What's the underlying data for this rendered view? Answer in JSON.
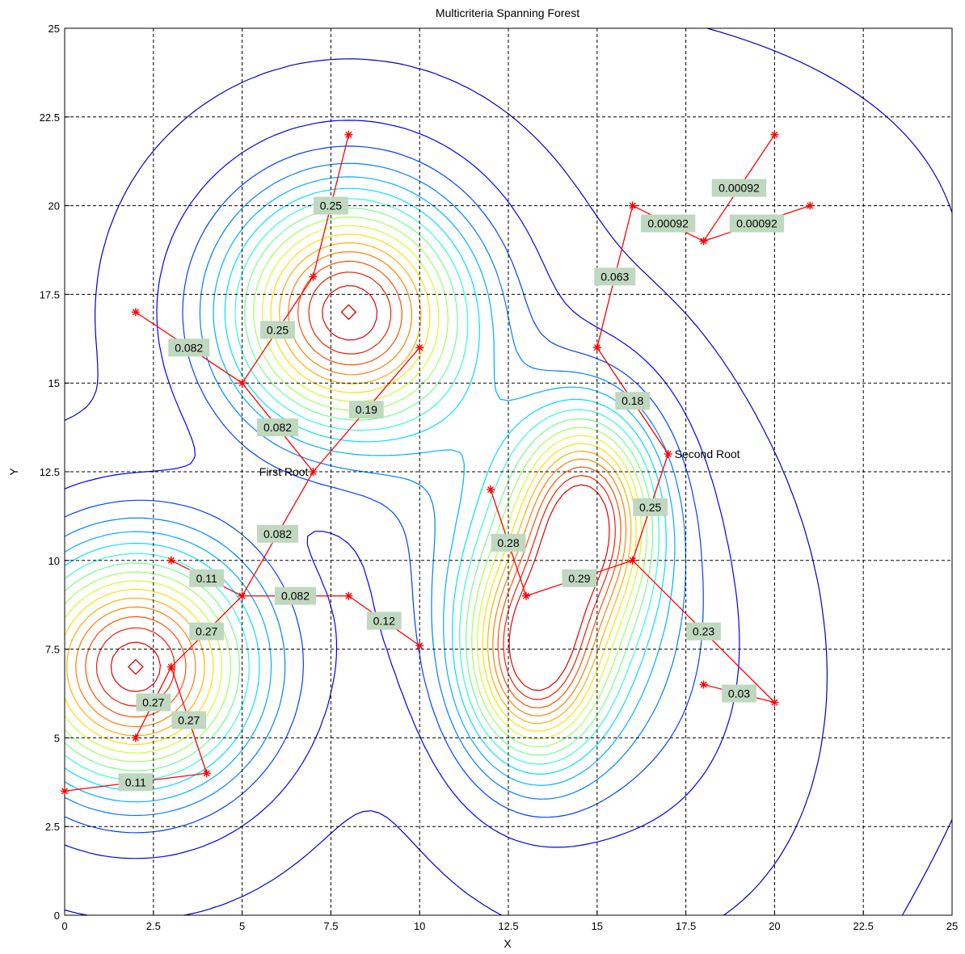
{
  "chart_data": {
    "type": "contour",
    "title": "Multicriteria Spanning Forest",
    "xlabel": "X",
    "ylabel": "Y",
    "xlim": [
      0,
      25
    ],
    "ylim": [
      0,
      25
    ],
    "xticks": [
      "0",
      "2.5",
      "5",
      "7.5",
      "10",
      "12.5",
      "15",
      "17.5",
      "20",
      "22.5",
      "25"
    ],
    "yticks": [
      "0",
      "2.5",
      "5",
      "7.5",
      "10",
      "12.5",
      "15",
      "17.5",
      "20",
      "22.5",
      "25"
    ],
    "grid": true,
    "peaks": [
      {
        "x": 2,
        "y": 7,
        "marker": "diamond"
      },
      {
        "x": 8,
        "y": 17,
        "marker": "diamond"
      }
    ],
    "nodes": [
      {
        "id": "n1",
        "x": 8,
        "y": 22
      },
      {
        "id": "n2",
        "x": 7,
        "y": 18
      },
      {
        "id": "n3",
        "x": 5,
        "y": 15
      },
      {
        "id": "n4",
        "x": 2,
        "y": 17
      },
      {
        "id": "n5",
        "x": 10,
        "y": 16
      },
      {
        "id": "n6",
        "x": 7,
        "y": 12.5
      },
      {
        "id": "n7",
        "x": 5,
        "y": 9
      },
      {
        "id": "n8",
        "x": 3,
        "y": 10
      },
      {
        "id": "n9",
        "x": 8,
        "y": 9
      },
      {
        "id": "n10",
        "x": 10,
        "y": 7.6
      },
      {
        "id": "n11",
        "x": 3,
        "y": 7
      },
      {
        "id": "n12",
        "x": 2,
        "y": 5
      },
      {
        "id": "n13",
        "x": 4,
        "y": 4
      },
      {
        "id": "n14",
        "x": 0,
        "y": 3.5
      },
      {
        "id": "n15",
        "x": 15,
        "y": 16
      },
      {
        "id": "n16",
        "x": 16,
        "y": 20
      },
      {
        "id": "n17",
        "x": 18,
        "y": 19
      },
      {
        "id": "n18",
        "x": 20,
        "y": 22
      },
      {
        "id": "n19",
        "x": 21,
        "y": 20
      },
      {
        "id": "n20",
        "x": 17,
        "y": 13
      },
      {
        "id": "n21",
        "x": 16,
        "y": 10
      },
      {
        "id": "n22",
        "x": 13,
        "y": 9
      },
      {
        "id": "n23",
        "x": 12,
        "y": 12
      },
      {
        "id": "n24",
        "x": 20,
        "y": 6
      },
      {
        "id": "n25",
        "x": 18,
        "y": 6.5
      }
    ],
    "edges": [
      {
        "from": "n1",
        "to": "n2",
        "label": "0.25"
      },
      {
        "from": "n2",
        "to": "n3",
        "label": "0.25"
      },
      {
        "from": "n4",
        "to": "n3",
        "label": "0.082"
      },
      {
        "from": "n3",
        "to": "n6",
        "label": "0.082"
      },
      {
        "from": "n5",
        "to": "n6",
        "label": "0.19"
      },
      {
        "from": "n6",
        "to": "n7",
        "label": "0.082"
      },
      {
        "from": "n8",
        "to": "n7",
        "label": "0.11"
      },
      {
        "from": "n7",
        "to": "n9",
        "label": "0.082"
      },
      {
        "from": "n9",
        "to": "n10",
        "label": "0.12"
      },
      {
        "from": "n7",
        "to": "n11",
        "label": "0.27"
      },
      {
        "from": "n11",
        "to": "n12",
        "label": "0.27"
      },
      {
        "from": "n11",
        "to": "n13",
        "label": "0.27"
      },
      {
        "from": "n14",
        "to": "n13",
        "label": "0.11"
      },
      {
        "from": "n15",
        "to": "n16",
        "label": "0.063"
      },
      {
        "from": "n16",
        "to": "n17",
        "label": "0.00092"
      },
      {
        "from": "n17",
        "to": "n18",
        "label": "0.00092"
      },
      {
        "from": "n17",
        "to": "n19",
        "label": "0.00092"
      },
      {
        "from": "n15",
        "to": "n20",
        "label": "0.18"
      },
      {
        "from": "n20",
        "to": "n21",
        "label": "0.25"
      },
      {
        "from": "n22",
        "to": "n21",
        "label": "0.29"
      },
      {
        "from": "n23",
        "to": "n22",
        "label": "0.28"
      },
      {
        "from": "n21",
        "to": "n24",
        "label": "0.23"
      },
      {
        "from": "n25",
        "to": "n24",
        "label": "0.03"
      }
    ],
    "roots": [
      {
        "node": "n6",
        "label": "First Root"
      },
      {
        "node": "n20",
        "label": "Second Root"
      }
    ],
    "colors": {
      "edge": "#ff0000",
      "label_bg": "#bfd8bf",
      "contour_low": "#0000c8",
      "contour_high": "#e00000"
    }
  }
}
